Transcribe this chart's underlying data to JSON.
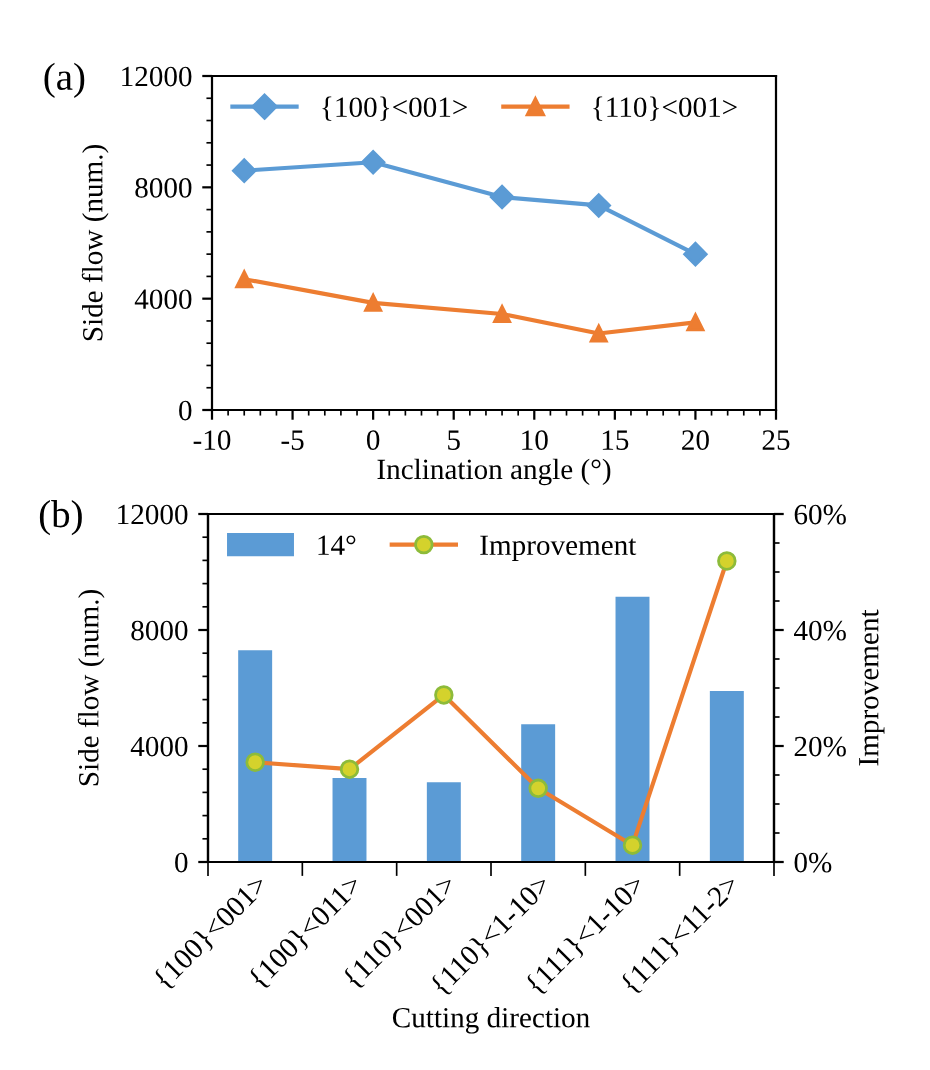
{
  "chart_data": [
    {
      "type": "line",
      "title": "(a)",
      "xlabel": "Inclination angle (°)",
      "ylabel": "Side flow (num.)",
      "x": [
        -8,
        0,
        8,
        14,
        20
      ],
      "series": [
        {
          "name": "{100}<001>",
          "color": "#5b9bd5",
          "marker": "diamond",
          "values": [
            8600,
            8900,
            7650,
            7350,
            5600
          ]
        },
        {
          "name": "{110}<001>",
          "color": "#ed7d31",
          "marker": "triangle",
          "values": [
            4700,
            3850,
            3450,
            2750,
            3150
          ]
        }
      ],
      "xlim": [
        -10,
        25
      ],
      "xticks": [
        -10,
        -5,
        0,
        5,
        10,
        15,
        20,
        25
      ],
      "ylim": [
        0,
        12000
      ],
      "yticks": [
        0,
        4000,
        8000,
        12000
      ],
      "legend": "top left",
      "grid": false
    },
    {
      "type": "bar",
      "title": "(b)",
      "xlabel": "Cutting direction",
      "ylabel": "Side flow (num.)",
      "y2label": "Improvement",
      "categories": [
        "{100}<001>",
        "{100}<011>",
        "{110}<001>",
        "{110}<1-10>",
        "{111}<1-10>",
        "{111}<11-2>"
      ],
      "series": [
        {
          "name": "14°",
          "color": "#5b9bd5",
          "values": [
            7300,
            2900,
            2750,
            4750,
            9150,
            5900
          ]
        },
        {
          "name": "Improvement",
          "type": "line",
          "axis": "y2",
          "color": "#ed7d31",
          "marker": "circle",
          "values": [
            17.2,
            16.0,
            28.8,
            12.7,
            2.9,
            51.9
          ]
        }
      ],
      "ylim": [
        0,
        12000
      ],
      "yticks": [
        0,
        4000,
        8000,
        12000
      ],
      "y2lim": [
        0,
        60
      ],
      "y2ticks": [
        {
          "value": 0,
          "label": "0%"
        },
        {
          "value": 20,
          "label": "20%"
        },
        {
          "value": 40,
          "label": "40%"
        },
        {
          "value": 60,
          "label": "60%"
        }
      ],
      "legend": "top left",
      "grid": false
    }
  ]
}
